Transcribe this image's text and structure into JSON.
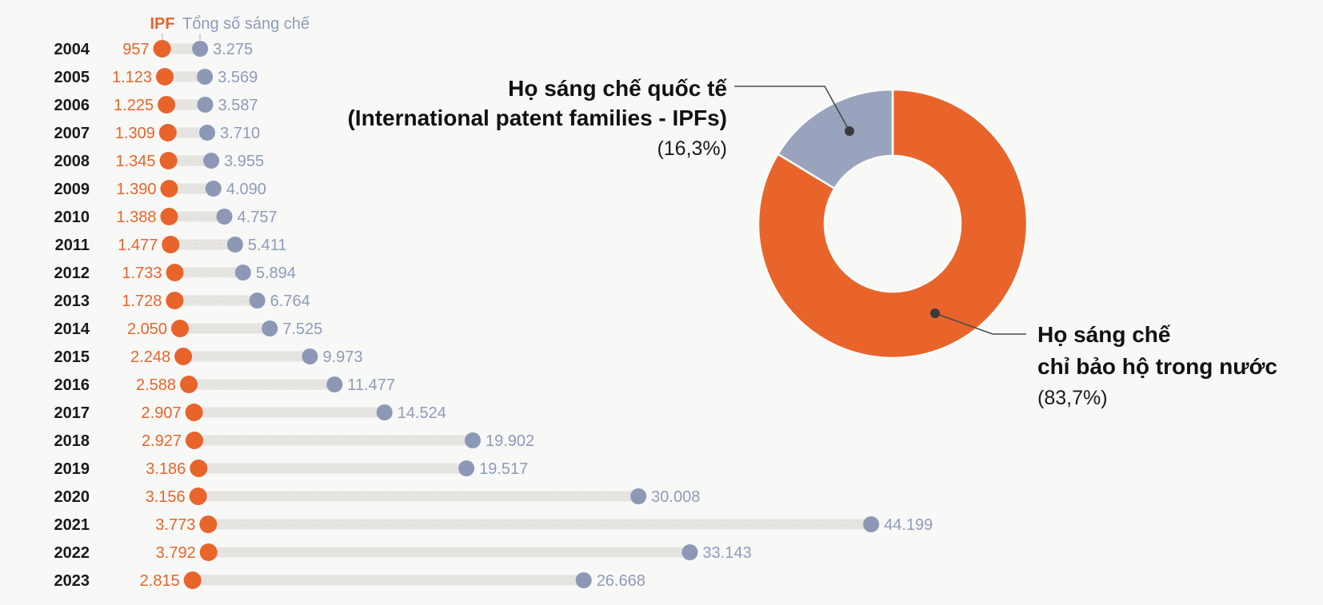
{
  "colors": {
    "orange": "#E8642B",
    "gray_blue_slice": "#9AA3BD",
    "gray_blue_dot": "#8C98B6",
    "gray_blue_text": "#8F9BBA",
    "track": "#E4E3E0",
    "year_text": "#1A1A1A",
    "leader_line": "#4A4A4A",
    "background": "#F8F8F7"
  },
  "chart_data": [
    {
      "type": "dumbbell",
      "legend": {
        "ipf": "IPF",
        "total": "Tổng số sáng chế"
      },
      "categories": [
        "2004",
        "2005",
        "2006",
        "2007",
        "2008",
        "2009",
        "2010",
        "2011",
        "2012",
        "2013",
        "2014",
        "2015",
        "2016",
        "2017",
        "2018",
        "2019",
        "2020",
        "2021",
        "2022",
        "2023"
      ],
      "series": [
        {
          "name": "IPF",
          "color": "#E8642B",
          "values": [
            957,
            1123,
            1225,
            1309,
            1345,
            1390,
            1388,
            1477,
            1733,
            1728,
            2050,
            2248,
            2588,
            2907,
            2927,
            3186,
            3156,
            3773,
            3792,
            2815
          ],
          "labels": [
            "957",
            "1.123",
            "1.225",
            "1.309",
            "1.345",
            "1.390",
            "1.388",
            "1.477",
            "1.733",
            "1.728",
            "2.050",
            "2.248",
            "2.588",
            "2.907",
            "2.927",
            "3.186",
            "3.156",
            "3.773",
            "3.792",
            "2.815"
          ]
        },
        {
          "name": "Tổng số sáng chế",
          "color": "#8C98B6",
          "values": [
            3275,
            3569,
            3587,
            3710,
            3955,
            4090,
            4757,
            5411,
            5894,
            6764,
            7525,
            9973,
            11477,
            14524,
            19902,
            19517,
            30008,
            44199,
            33143,
            26668
          ],
          "labels": [
            "3.275",
            "3.569",
            "3.587",
            "3.710",
            "3.955",
            "4.090",
            "4.757",
            "5.411",
            "5.894",
            "6.764",
            "7.525",
            "9.973",
            "11.477",
            "14.524",
            "19.902",
            "19.517",
            "30.008",
            "44.199",
            "33.143",
            "26.668"
          ]
        }
      ]
    },
    {
      "type": "donut",
      "slices": [
        {
          "name": "international-patent-families",
          "pct": 16.3,
          "pct_label": "(16,3%)",
          "label_line1": "Họ sáng chế quốc tế",
          "label_line2": "(International patent families - IPFs)",
          "color": "#9AA3BD"
        },
        {
          "name": "domestic-only-patent-families",
          "pct": 83.7,
          "pct_label": "(83,7%)",
          "label_line1": "Họ sáng chế",
          "label_line2": "chỉ bảo hộ trong nước",
          "color": "#E8642B"
        }
      ]
    }
  ]
}
